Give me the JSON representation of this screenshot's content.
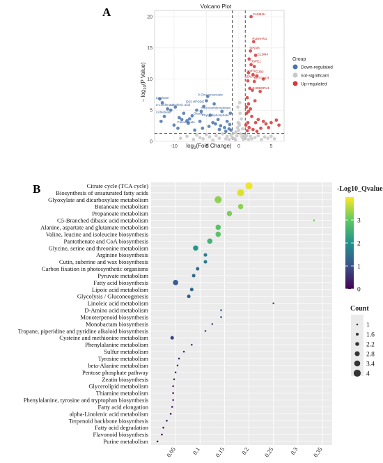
{
  "panel_labels": {
    "a": "A",
    "b": "B"
  },
  "chart_data": [
    {
      "type": "scatter",
      "title": "Volcano Plot",
      "xlabel": "log2(Fold Change)",
      "ylabel": "- log10(P Value)",
      "xlim": [
        -13,
        7
      ],
      "ylim": [
        0,
        21
      ],
      "xticks": [
        -10,
        -5,
        0,
        5
      ],
      "yticks": [
        0,
        5,
        10,
        15,
        20
      ],
      "grid": true,
      "legend_title": "Group",
      "legend_position": "right",
      "series_colors": {
        "down": "#4a74b0",
        "ns": "#c8c8c8",
        "up": "#d43a3a"
      },
      "series": [
        {
          "name": "Down-regulated",
          "key": "down",
          "points": [
            [
              -12.2,
              6.8
            ],
            [
              -11.8,
              6.2
            ],
            [
              -11.0,
              5.2
            ],
            [
              -10.5,
              5.0
            ],
            [
              -9.8,
              5.5
            ],
            [
              -8.5,
              4.5
            ],
            [
              -9.2,
              3.8
            ],
            [
              -8.8,
              3.5
            ],
            [
              -8.0,
              3.3
            ],
            [
              -7.6,
              3.6
            ],
            [
              -7.2,
              4.1
            ],
            [
              -6.5,
              5.0
            ],
            [
              -6.0,
              3.2
            ],
            [
              -5.8,
              4.8
            ],
            [
              -5.4,
              5.6
            ],
            [
              -5.0,
              6.5
            ],
            [
              -4.8,
              7.2
            ],
            [
              -4.4,
              4.2
            ],
            [
              -4.0,
              3.0
            ],
            [
              -3.6,
              2.8
            ],
            [
              -3.2,
              3.5
            ],
            [
              -2.8,
              2.5
            ],
            [
              -2.6,
              4.8
            ],
            [
              -2.2,
              2.2
            ],
            [
              -1.8,
              3.2
            ],
            [
              -1.5,
              2.0
            ],
            [
              -1.3,
              4.5
            ],
            [
              -1.2,
              1.8
            ],
            [
              -12.0,
              3.2
            ],
            [
              -10.0,
              2.6
            ],
            [
              -7.8,
              2.9
            ],
            [
              -4.6,
              2.4
            ],
            [
              -3.0,
              1.9
            ],
            [
              -2.0,
              1.6
            ],
            [
              -1.4,
              2.7
            ],
            [
              -6.8,
              1.8
            ],
            [
              -5.6,
              2.1
            ],
            [
              -9.4,
              2.1
            ],
            [
              -11.5,
              4.0
            ],
            [
              -3.8,
              6.0
            ]
          ]
        },
        {
          "name": "not-significant",
          "key": "ns",
          "points": [
            [
              -9,
              0.5
            ],
            [
              -8,
              0.8
            ],
            [
              -7,
              0.3
            ],
            [
              -6.5,
              1.0
            ],
            [
              -6,
              0.6
            ],
            [
              -5.5,
              0.4
            ],
            [
              -5,
              1.1
            ],
            [
              -4.5,
              0.7
            ],
            [
              -4,
              0.2
            ],
            [
              -3.5,
              0.9
            ],
            [
              -3,
              0.5
            ],
            [
              -2.5,
              1.2
            ],
            [
              -2,
              0.4
            ],
            [
              -1.8,
              0.8
            ],
            [
              -1.5,
              0.3
            ],
            [
              -1.2,
              1.0
            ],
            [
              -1,
              0.6
            ],
            [
              -0.8,
              1.3
            ],
            [
              -0.6,
              0.4
            ],
            [
              -0.4,
              1.5
            ],
            [
              -0.3,
              0.9
            ],
            [
              -0.2,
              2.2
            ],
            [
              -0.1,
              3.0
            ],
            [
              0,
              1.8
            ],
            [
              0.1,
              2.6
            ],
            [
              0.2,
              4.5
            ],
            [
              0.3,
              1.2
            ],
            [
              0.4,
              3.6
            ],
            [
              0.5,
              0.7
            ],
            [
              0.6,
              2.0
            ],
            [
              0.8,
              1.0
            ],
            [
              1,
              0.5
            ],
            [
              1.2,
              0.9
            ],
            [
              1.5,
              0.3
            ],
            [
              1.8,
              0.8
            ],
            [
              2,
              0.4
            ],
            [
              2.5,
              0.6
            ],
            [
              3,
              0.9
            ],
            [
              3.5,
              0.3
            ],
            [
              4,
              0.7
            ],
            [
              4.5,
              0.5
            ],
            [
              5,
              0.8
            ],
            [
              5.5,
              0.4
            ],
            [
              -0.5,
              0.2
            ],
            [
              0.7,
              0.3
            ],
            [
              -0.9,
              0.5
            ],
            [
              0.9,
              0.6
            ],
            [
              -0.15,
              5.5
            ],
            [
              0.15,
              6.2
            ],
            [
              0.05,
              2.9
            ]
          ]
        },
        {
          "name": "Up-regulated",
          "key": "up",
          "points": [
            [
              1.9,
              20.0
            ],
            [
              2.3,
              16.0
            ],
            [
              1.8,
              14.5
            ],
            [
              2.6,
              13.8
            ],
            [
              1.6,
              13.2
            ],
            [
              1.9,
              12.3
            ],
            [
              1.5,
              11.0
            ],
            [
              2.2,
              10.7
            ],
            [
              2.8,
              10.5
            ],
            [
              1.4,
              9.7
            ],
            [
              2.4,
              9.6
            ],
            [
              1.7,
              8.5
            ],
            [
              2.1,
              8.2
            ],
            [
              3.3,
              8.0
            ],
            [
              1.3,
              7.0
            ],
            [
              1.5,
              6.0
            ],
            [
              2.5,
              6.5
            ],
            [
              1.8,
              5.2
            ],
            [
              1.2,
              4.5
            ],
            [
              2.0,
              4.0
            ],
            [
              3.0,
              3.5
            ],
            [
              1.4,
              3.0
            ],
            [
              2.6,
              3.0
            ],
            [
              3.8,
              3.2
            ],
            [
              4.2,
              2.8
            ],
            [
              5.0,
              3.0
            ],
            [
              5.8,
              3.4
            ],
            [
              6.2,
              2.6
            ],
            [
              1.6,
              2.2
            ],
            [
              2.2,
              1.9
            ],
            [
              3.4,
              2.1
            ],
            [
              4.6,
              2.2
            ],
            [
              1.3,
              1.7
            ],
            [
              2.8,
              1.6
            ],
            [
              1.1,
              2.6
            ],
            [
              1.2,
              5.5
            ],
            [
              1.5,
              4.8
            ],
            [
              3.8,
              10.0
            ],
            [
              2.4,
              12.0
            ]
          ]
        }
      ],
      "annotations": [
        {
          "text": "FAM83H",
          "x": 2.2,
          "y": 20.2,
          "side": "up"
        },
        {
          "text": "PLEKHN1",
          "x": 2.1,
          "y": 16.3,
          "side": "up"
        },
        {
          "text": "TP53I3",
          "x": 1.6,
          "y": 14.8,
          "side": "up"
        },
        {
          "text": "CLDN4",
          "x": 2.9,
          "y": 13.8,
          "side": "up"
        },
        {
          "text": "HSPE1",
          "x": 1.8,
          "y": 12.7,
          "side": "up"
        },
        {
          "text": "C3orf70",
          "x": 0.9,
          "y": 11.1,
          "side": "up"
        },
        {
          "text": "GJB3",
          "x": 2.6,
          "y": 11.0,
          "side": "up"
        },
        {
          "text": "SEMA3",
          "x": 0.9,
          "y": 10.2,
          "side": "up"
        },
        {
          "text": "KRTCAP3",
          "x": 2.4,
          "y": 10.0,
          "side": "up"
        },
        {
          "text": "SH3BGRL3",
          "x": 2.1,
          "y": 8.4,
          "side": "up"
        },
        {
          "text": "9-Oxo-nonanoate",
          "x": -6.3,
          "y": 7.3,
          "side": "down"
        },
        {
          "text": "Linoleate",
          "x": -12.8,
          "y": 6.8,
          "side": "down"
        },
        {
          "text": "(9S)-HPODE",
          "x": -8.2,
          "y": 6.2,
          "side": "down"
        },
        {
          "text": "α-Linolenate",
          "x": -12.8,
          "y": 5.7,
          "side": "down"
        },
        {
          "text": "Linolenic acid",
          "x": -10.5,
          "y": 5.7,
          "side": "down"
        },
        {
          "text": "5-Acetamidovalerate",
          "x": -5.8,
          "y": 5.2,
          "side": "down"
        },
        {
          "text": "Colneleate",
          "x": -12.8,
          "y": 4.5,
          "side": "down"
        },
        {
          "text": "Oleate",
          "x": -7.0,
          "y": 4.3,
          "side": "down"
        },
        {
          "text": "Phytyl diphosphate",
          "x": -5.7,
          "y": 4.0,
          "side": "down"
        },
        {
          "text": "Palmitoleate",
          "x": -9.5,
          "y": 2.9,
          "side": "down"
        }
      ],
      "hlines": [
        1.3
      ],
      "vlines": [
        -1,
        1
      ]
    },
    {
      "type": "scatter",
      "subtype": "bubble",
      "xlabel": "",
      "ylabel": "",
      "xlim": [
        0.0,
        0.37
      ],
      "xticks": [
        0.05,
        0.1,
        0.15,
        0.2,
        0.25,
        0.3,
        0.35
      ],
      "grid": true,
      "color_legend_title": "-Log10_Qvalue",
      "color_range": [
        0,
        4
      ],
      "color_ticks": [
        0,
        1,
        2,
        3
      ],
      "size_legend_title": "Count",
      "size_legend_values": [
        "1",
        "1.6",
        "2.2",
        "2.8",
        "3.4",
        "4"
      ],
      "legend_position": "right",
      "categories": [
        "Citrate cycle (TCA cycle)",
        "Biosynthesis of unsaturated fatty acids",
        "Glyoxylate and dicarboxylate metabolism",
        "Butanoate metabolism",
        "Propanoate metabolism",
        "C5-Branched dibasic acid metabolism",
        "Alanine, aspartate and glutamate metabolism",
        "Valine, leucine and isoleucine biosynthesis",
        "Pantothenate and CoA biosynthesis",
        "Glycine, serine and threonine metabolism",
        "Arginine biosynthesis",
        "Cutin, suberine and wax biosynthesis",
        "Carbon fixation in photosynthetic organisms",
        "Pyruvate metabolism",
        "Fatty acid biosynthesis",
        "Lipoic acid metabolism",
        "Glycolysis / Gluconeogenesis",
        "Linoleic acid metabolism",
        "D-Amino acid metabolism",
        "Monoterpenoid biosynthesis",
        "Monobactam biosynthesis",
        "Tropane, piperidine and pyridine alkaloid biosynthesis",
        "Cysteine and methionine metabolism",
        "Phenylalanine metabolism",
        "Sulfur metabolism",
        "Tyrosine metabolism",
        "beta-Alanine metabolism",
        "Pentose phosphate pathway",
        "Zeatin biosynthesis",
        "Glycerolipid metabolism",
        "Thiamine metabolism",
        "Phenylalanine, tyrosine and tryptophan biosynthesis",
        "Fatty acid elongation",
        "alpha-Linolenic acid metabolism",
        "Terpenoid backbone biosynthesis",
        "Fatty acid degradation",
        "Flavonoid biosynthesis",
        "Purine metabolism"
      ],
      "x": [
        0.2,
        0.183,
        0.137,
        0.183,
        0.16,
        0.333,
        0.137,
        0.137,
        0.12,
        0.091,
        0.111,
        0.111,
        0.095,
        0.087,
        0.05,
        0.083,
        0.077,
        0.25,
        0.143,
        0.143,
        0.125,
        0.111,
        0.043,
        0.083,
        0.067,
        0.057,
        0.054,
        0.05,
        0.047,
        0.045,
        0.045,
        0.045,
        0.043,
        0.04,
        0.032,
        0.025,
        0.022,
        0.013
      ],
      "count": [
        4,
        4,
        4,
        3,
        3,
        1,
        3,
        3,
        3,
        3,
        2,
        2,
        2,
        2,
        3,
        2,
        2,
        1,
        1,
        1,
        1,
        1,
        2,
        1,
        1,
        1,
        1,
        1,
        1,
        1,
        1,
        1,
        1,
        1,
        1,
        1,
        1,
        1
      ],
      "qvalue": [
        3.9,
        3.8,
        3.3,
        3.3,
        3.2,
        3.1,
        2.9,
        2.9,
        2.6,
        2.1,
        1.7,
        1.7,
        1.5,
        1.4,
        1.2,
        1.3,
        1.2,
        1.0,
        1.0,
        1.0,
        0.9,
        0.9,
        0.8,
        0.7,
        0.6,
        0.5,
        0.5,
        0.5,
        0.4,
        0.4,
        0.4,
        0.4,
        0.3,
        0.3,
        0.3,
        0.25,
        0.2,
        0.1
      ]
    }
  ]
}
